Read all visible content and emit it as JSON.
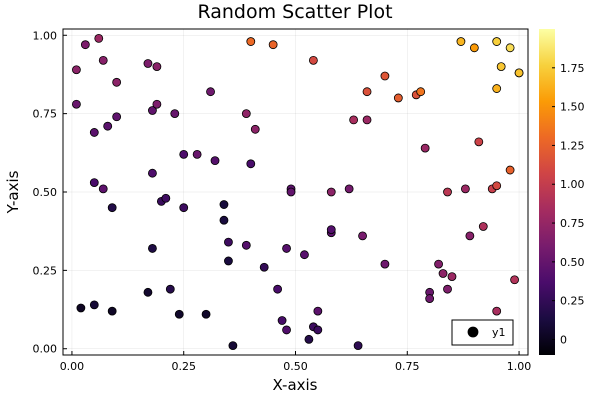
{
  "chart_data": {
    "type": "scatter",
    "title": "Random Scatter Plot",
    "xlabel": "X-axis",
    "ylabel": "Y-axis",
    "xlim": [
      -0.02,
      1.02
    ],
    "ylim": [
      -0.02,
      1.02
    ],
    "xticks": [
      0.0,
      0.25,
      0.5,
      0.75,
      1.0
    ],
    "xtick_labels": [
      "0.00",
      "0.25",
      "0.50",
      "0.75",
      "1.00"
    ],
    "yticks": [
      0.0,
      0.25,
      0.5,
      0.75,
      1.0
    ],
    "ytick_labels": [
      "0.00",
      "0.25",
      "0.50",
      "0.75",
      "1.00"
    ],
    "grid": true,
    "legend": {
      "position": "bottom-right",
      "entries": [
        "y1"
      ]
    },
    "colorbar": {
      "range": [
        -0.1,
        2.0
      ],
      "ticks": [
        0.0,
        0.25,
        0.5,
        0.75,
        1.0,
        1.25,
        1.5,
        1.75
      ],
      "tick_labels": [
        "0",
        "0.25",
        "0.50",
        "0.75",
        "1.00",
        "1.25",
        "1.50",
        "1.75"
      ],
      "colormap": "inferno",
      "stops": [
        "#000004",
        "#1b0c41",
        "#4a0c6b",
        "#781c6d",
        "#a52c60",
        "#cf4446",
        "#ed6925",
        "#fb9b06",
        "#f7d13d",
        "#fcffa4"
      ]
    },
    "series": [
      {
        "name": "y1",
        "x": [
          0.01,
          0.03,
          0.06,
          0.07,
          0.1,
          0.17,
          0.19,
          0.01,
          0.05,
          0.08,
          0.1,
          0.18,
          0.19,
          0.23,
          0.31,
          0.25,
          0.28,
          0.32,
          0.39,
          0.4,
          0.41,
          0.45,
          0.54,
          0.4,
          0.05,
          0.07,
          0.09,
          0.18,
          0.2,
          0.21,
          0.25,
          0.34,
          0.34,
          0.35,
          0.39,
          0.43,
          0.48,
          0.49,
          0.49,
          0.18,
          0.35,
          0.02,
          0.05,
          0.09,
          0.17,
          0.22,
          0.24,
          0.3,
          0.36,
          0.46,
          0.47,
          0.48,
          0.53,
          0.54,
          0.55,
          0.58,
          0.58,
          0.52,
          0.64,
          0.55,
          0.58,
          0.62,
          0.63,
          0.66,
          0.66,
          0.65,
          0.7,
          0.7,
          0.73,
          0.77,
          0.78,
          0.79,
          0.8,
          0.8,
          0.82,
          0.83,
          0.84,
          0.85,
          0.84,
          0.88,
          0.89,
          0.91,
          0.92,
          0.94,
          0.95,
          0.95,
          0.98,
          0.99,
          1.0,
          0.87,
          0.9,
          0.95,
          0.96,
          0.98,
          1.0,
          0.95
        ],
        "y": [
          0.89,
          0.97,
          0.99,
          0.92,
          0.85,
          0.91,
          0.9,
          0.78,
          0.69,
          0.71,
          0.74,
          0.76,
          0.78,
          0.75,
          0.82,
          0.62,
          0.62,
          0.6,
          0.75,
          0.98,
          0.7,
          0.97,
          0.92,
          0.59,
          0.53,
          0.51,
          0.45,
          0.56,
          0.47,
          0.48,
          0.45,
          0.46,
          0.41,
          0.34,
          0.33,
          0.26,
          0.32,
          0.51,
          0.5,
          0.32,
          0.28,
          0.13,
          0.14,
          0.12,
          0.18,
          0.19,
          0.11,
          0.11,
          0.01,
          0.19,
          0.09,
          0.06,
          0.03,
          0.07,
          0.06,
          0.37,
          0.38,
          0.3,
          0.01,
          0.12,
          0.5,
          0.51,
          0.73,
          0.73,
          0.82,
          0.36,
          0.87,
          0.27,
          0.8,
          0.81,
          0.82,
          0.64,
          0.18,
          0.16,
          0.27,
          0.24,
          0.5,
          0.23,
          0.19,
          0.51,
          0.36,
          0.66,
          0.39,
          0.51,
          0.52,
          0.12,
          0.57,
          0.22,
          0.88,
          0.98,
          0.96,
          0.98,
          0.9,
          0.96,
          0.88,
          0.83
        ],
        "color_value": [
          0.7,
          0.62,
          0.78,
          0.68,
          0.7,
          0.62,
          0.69,
          0.52,
          0.45,
          0.45,
          0.47,
          0.48,
          0.62,
          0.51,
          0.55,
          0.38,
          0.52,
          0.42,
          0.72,
          1.3,
          0.7,
          1.27,
          1.1,
          0.36,
          0.36,
          0.47,
          0.17,
          0.38,
          0.28,
          0.31,
          0.3,
          0.11,
          0.12,
          0.3,
          0.42,
          0.25,
          0.43,
          0.46,
          0.49,
          0.15,
          0.12,
          0.02,
          0.09,
          0.03,
          0.06,
          0.19,
          0.05,
          0.04,
          0.09,
          0.36,
          0.35,
          0.4,
          0.18,
          0.3,
          0.29,
          0.46,
          0.41,
          0.44,
          0.23,
          0.46,
          0.7,
          0.58,
          0.85,
          0.78,
          1.15,
          0.6,
          1.18,
          0.55,
          1.23,
          1.15,
          1.35,
          0.77,
          0.52,
          0.55,
          0.65,
          0.71,
          0.95,
          0.78,
          0.63,
          0.78,
          0.68,
          1.05,
          0.88,
          1.02,
          1.1,
          0.85,
          1.25,
          0.9,
          1.82,
          1.65,
          1.53,
          1.76,
          1.72,
          1.82,
          1.7,
          1.63
        ]
      }
    ]
  }
}
